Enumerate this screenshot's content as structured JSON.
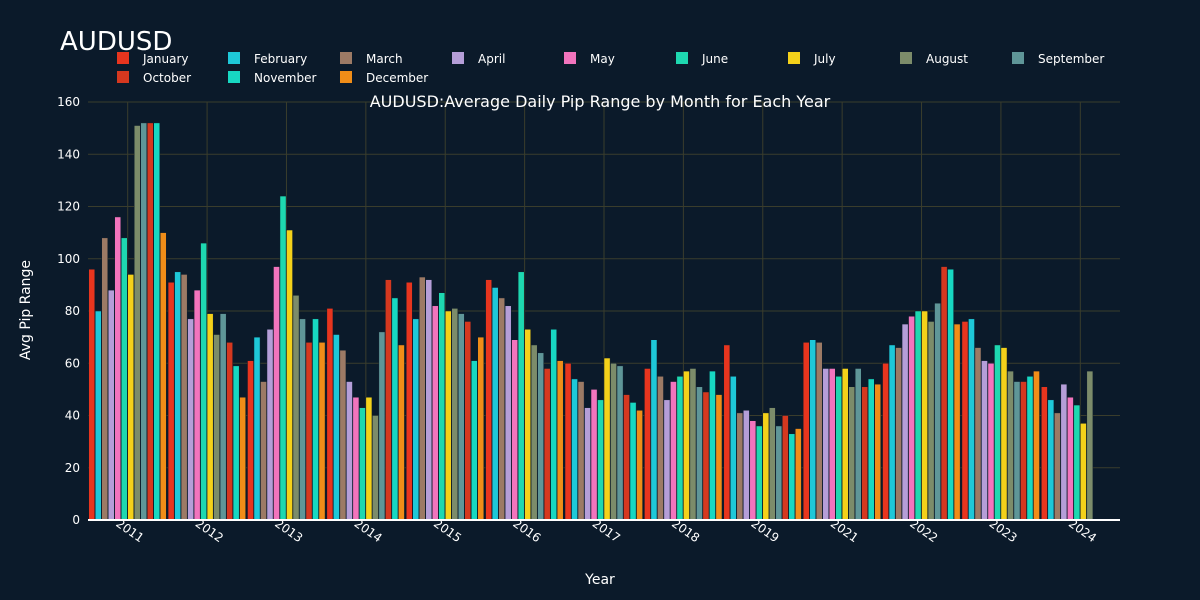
{
  "chart_data": {
    "type": "bar",
    "corner_title": "AUDUSD",
    "title": "AUDUSD:Average Daily Pip Range by Month for Each Year",
    "xlabel": "Year",
    "ylabel": "Avg Pip Range",
    "ylim": [
      0,
      160
    ],
    "yticks": [
      0,
      20,
      40,
      60,
      80,
      100,
      120,
      140,
      160
    ],
    "grid": true,
    "legend_position": "top",
    "categories": [
      "2011",
      "2012",
      "2013",
      "2014",
      "2015",
      "2016",
      "2017",
      "2018",
      "2019",
      "2021",
      "2022",
      "2023",
      "2024"
    ],
    "series": [
      {
        "name": "January",
        "color": "#e8351e",
        "values": [
          96,
          91,
          61,
          81,
          91,
          92,
          60,
          58,
          67,
          68,
          60,
          76,
          51
        ]
      },
      {
        "name": "February",
        "color": "#1ec8d8",
        "values": [
          80,
          95,
          70,
          71,
          77,
          89,
          54,
          69,
          55,
          69,
          67,
          77,
          46
        ]
      },
      {
        "name": "March",
        "color": "#9c7a65",
        "values": [
          108,
          94,
          53,
          65,
          93,
          85,
          53,
          55,
          41,
          68,
          66,
          66,
          41
        ]
      },
      {
        "name": "April",
        "color": "#b59ed8",
        "values": [
          88,
          77,
          73,
          53,
          92,
          82,
          43,
          46,
          42,
          58,
          75,
          61,
          52
        ]
      },
      {
        "name": "May",
        "color": "#f274bd",
        "values": [
          116,
          88,
          97,
          47,
          82,
          69,
          50,
          53,
          38,
          58,
          78,
          60,
          47
        ]
      },
      {
        "name": "June",
        "color": "#1ed8b0",
        "values": [
          108,
          106,
          124,
          43,
          87,
          95,
          46,
          55,
          36,
          55,
          80,
          67,
          44
        ]
      },
      {
        "name": "July",
        "color": "#f4d11a",
        "values": [
          94,
          79,
          111,
          47,
          80,
          73,
          62,
          57,
          41,
          58,
          80,
          66,
          37
        ]
      },
      {
        "name": "August",
        "color": "#7c8c6a",
        "values": [
          151,
          71,
          86,
          40,
          81,
          67,
          60,
          58,
          43,
          51,
          76,
          57,
          57
        ]
      },
      {
        "name": "September",
        "color": "#5f9698",
        "values": [
          152,
          79,
          77,
          72,
          79,
          64,
          59,
          51,
          36,
          58,
          83,
          53,
          null
        ]
      },
      {
        "name": "October",
        "color": "#d5381f",
        "values": [
          152,
          68,
          68,
          92,
          76,
          58,
          48,
          49,
          40,
          51,
          97,
          53,
          null
        ]
      },
      {
        "name": "November",
        "color": "#17d8c2",
        "values": [
          152,
          59,
          77,
          85,
          61,
          73,
          45,
          57,
          33,
          54,
          96,
          55,
          null
        ]
      },
      {
        "name": "December",
        "color": "#f08d18",
        "values": [
          110,
          47,
          68,
          67,
          70,
          61,
          42,
          48,
          35,
          52,
          75,
          57,
          null
        ]
      }
    ]
  }
}
